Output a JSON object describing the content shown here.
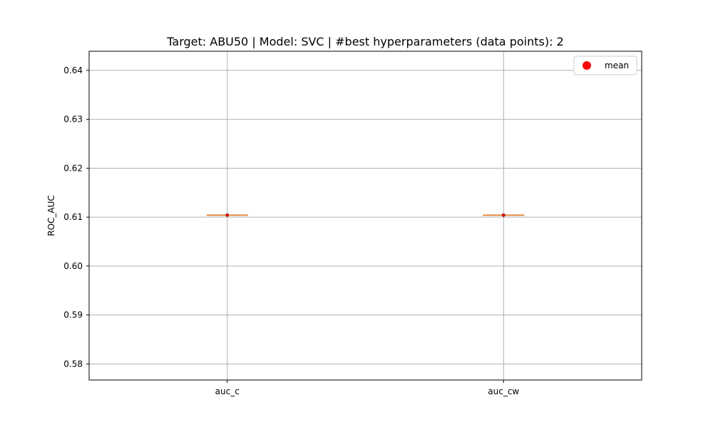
{
  "chart_data": {
    "type": "box",
    "title": "Target: ABU50 | Model: SVC | #best hyperparameters (data points): 2",
    "xlabel": "",
    "ylabel": "ROC_AUC",
    "ylim": [
      0.5767,
      0.6439
    ],
    "yticks": [
      0.58,
      0.59,
      0.6,
      0.61,
      0.62,
      0.63,
      0.64
    ],
    "ytick_labels": [
      "0.58",
      "0.59",
      "0.60",
      "0.61",
      "0.62",
      "0.63",
      "0.64"
    ],
    "categories": [
      "auc_c",
      "auc_cw"
    ],
    "boxes": [
      {
        "category": "auc_c",
        "min": 0.6104,
        "q1": 0.6104,
        "median": 0.6104,
        "q3": 0.6104,
        "max": 0.6104,
        "mean": 0.6104
      },
      {
        "category": "auc_cw",
        "min": 0.6104,
        "q1": 0.6104,
        "median": 0.6104,
        "q3": 0.6104,
        "max": 0.6104,
        "mean": 0.6104
      }
    ],
    "grid": true,
    "legend": {
      "placement": "top-right",
      "entries": [
        {
          "label": "mean",
          "marker": "circle",
          "color": "#ff0000"
        }
      ]
    },
    "colors": {
      "median": "#e08a3c",
      "mean": "#ff0000",
      "grid": "#b0b0b0",
      "axes": "#000000"
    }
  }
}
